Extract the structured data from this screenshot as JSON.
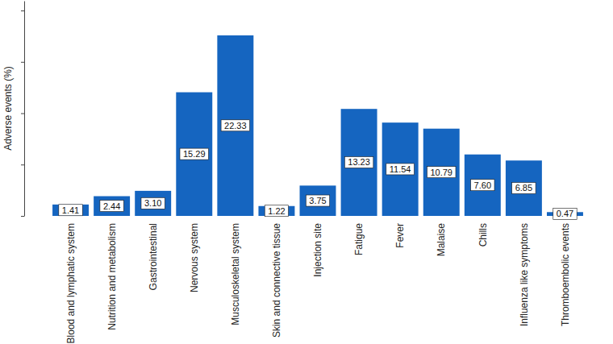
{
  "chart_data": {
    "type": "bar",
    "y_label": "Adverse events (%)",
    "categories": [
      "Blood and lymphatic system",
      "Nutrition and metabolism",
      "Gastrointestinal",
      "Nervous system",
      "Musculoskeletal system",
      "Skin and connective tissue",
      "Injection site",
      "Fatigue",
      "Fever",
      "Malaise",
      "Chills",
      "Influenza like symptoms",
      "Thromboembolic events"
    ],
    "values": [
      1.41,
      2.44,
      3.1,
      15.29,
      22.33,
      1.22,
      3.75,
      13.23,
      11.54,
      10.79,
      7.6,
      6.85,
      0.47
    ],
    "value_labels": [
      "1.41",
      "2.44",
      "3.10",
      "15.29",
      "22.33",
      "1.22",
      "3.75",
      "13.23",
      "11.54",
      "10.79",
      "7.60",
      "6.85",
      "0.47"
    ],
    "color": "#1565c0",
    "ylim": [
      0,
      26.6
    ],
    "yticks": [
      0,
      6.35,
      12.7,
      19.05,
      25.4
    ],
    "tick_labels": "x",
    "data_labels": true,
    "grid": false
  }
}
